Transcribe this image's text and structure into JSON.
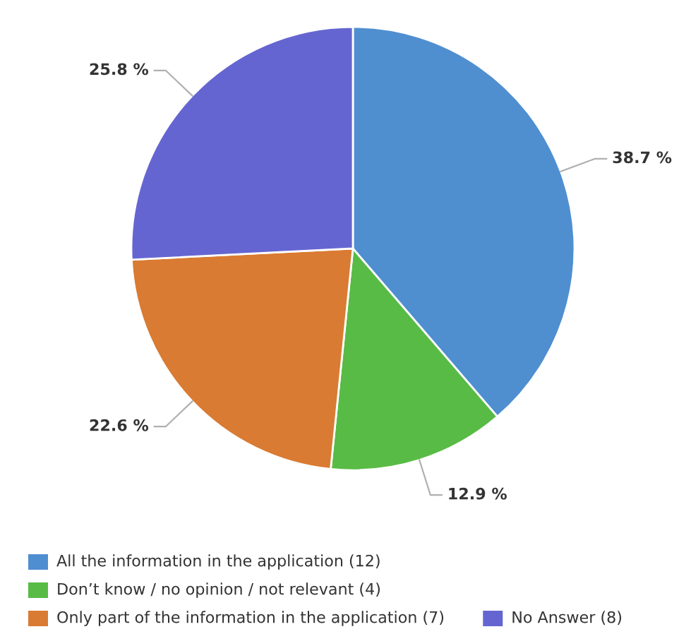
{
  "chart_data": {
    "type": "pie",
    "categories": [
      "All the information in the application (12)",
      "Don’t know / no opinion / not relevant (4)",
      "Only part of the information in the application (7)",
      "No Answer (8)"
    ],
    "values": [
      38.7,
      12.9,
      22.6,
      25.8
    ],
    "colors": [
      "#4f8fd0",
      "#58bb45",
      "#d97b32",
      "#6565d2"
    ],
    "value_labels": [
      "38.7 %",
      "12.9 %",
      "22.6 %",
      "25.8 %"
    ],
    "legend": "bottom"
  }
}
